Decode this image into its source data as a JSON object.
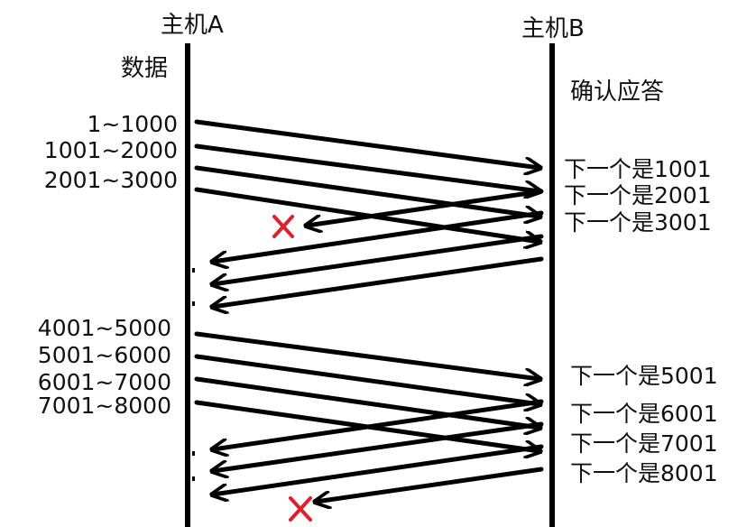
{
  "hosts": {
    "a": "主机A",
    "b": "主机B"
  },
  "column_titles": {
    "data": "数据",
    "ack": "确认应答"
  },
  "group1": {
    "data": [
      "1~1000",
      "1001~2000",
      "2001~3000"
    ],
    "acks": [
      "下一个是1001",
      "下一个是2001",
      "下一个是3001"
    ]
  },
  "group2": {
    "data": [
      "4001~5000",
      "5001~6000",
      "6001~7000",
      "7001~8000"
    ],
    "acks": [
      "下一个是5001",
      "下一个是6001",
      "下一个是7001",
      "下一个是8001"
    ]
  },
  "colors": {
    "line": "#000000",
    "loss_mark": "#e0202a"
  },
  "icons": {
    "loss": "cross-mark-icon"
  }
}
